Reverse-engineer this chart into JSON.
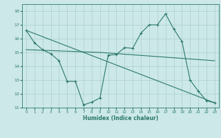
{
  "xlabel": "Humidex (Indice chaleur)",
  "bg_color": "#cce8e8",
  "grid_color": "#aacfcf",
  "line_color": "#2a7868",
  "xlim": [
    -0.5,
    23.5
  ],
  "ylim": [
    11,
    18.5
  ],
  "yticks": [
    11,
    12,
    13,
    14,
    15,
    16,
    17,
    18
  ],
  "xticks": [
    0,
    1,
    2,
    3,
    4,
    5,
    6,
    7,
    8,
    9,
    10,
    11,
    12,
    13,
    14,
    15,
    16,
    17,
    18,
    19,
    20,
    21,
    22,
    23
  ],
  "line1_x": [
    0,
    1,
    2,
    3,
    4,
    5,
    6,
    7,
    8,
    9,
    10,
    11,
    12,
    13,
    14,
    15,
    16,
    17,
    18,
    19,
    20,
    21,
    22,
    23
  ],
  "line1_y": [
    16.6,
    15.7,
    15.2,
    14.9,
    14.4,
    12.9,
    12.9,
    11.2,
    11.4,
    11.7,
    14.8,
    14.85,
    15.35,
    15.3,
    16.4,
    17.0,
    17.0,
    17.8,
    16.7,
    15.8,
    13.0,
    12.2,
    11.5,
    11.35
  ],
  "line2_x": [
    0,
    23
  ],
  "line2_y": [
    16.6,
    11.35
  ],
  "line3_x": [
    0,
    9,
    23
  ],
  "line3_y": [
    15.2,
    15.0,
    14.4
  ]
}
